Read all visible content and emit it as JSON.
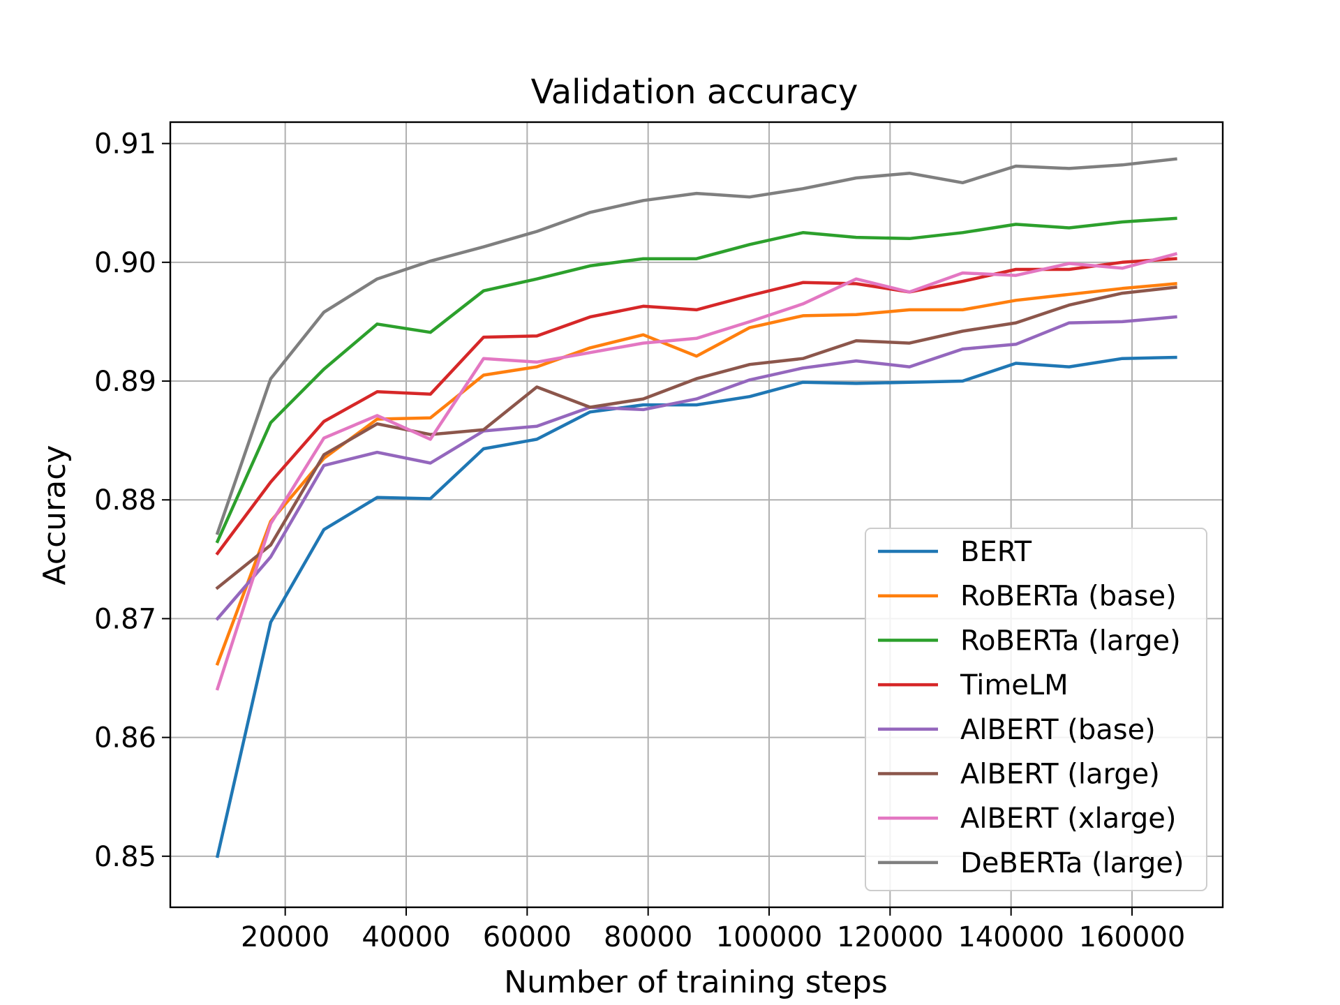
{
  "chart_data": {
    "type": "line",
    "title": "Validation accuracy",
    "xlabel": "Number of training steps",
    "ylabel": "Accuracy",
    "xlim": [
      1000,
      175000
    ],
    "ylim": [
      0.8457,
      0.9118
    ],
    "xticks": [
      20000,
      40000,
      60000,
      80000,
      100000,
      120000,
      140000,
      160000
    ],
    "xtick_labels": [
      "20000",
      "40000",
      "60000",
      "80000",
      "100000",
      "120000",
      "140000",
      "160000"
    ],
    "yticks": [
      0.85,
      0.86,
      0.87,
      0.88,
      0.89,
      0.9,
      0.91
    ],
    "ytick_labels": [
      "0.85",
      "0.86",
      "0.87",
      "0.88",
      "0.89",
      "0.90",
      "0.91"
    ],
    "grid": true,
    "legend_position": "lower-right",
    "x": [
      8800,
      17600,
      26400,
      35200,
      44000,
      52800,
      61600,
      70400,
      79200,
      88000,
      96800,
      105600,
      114400,
      123200,
      132000,
      140800,
      149600,
      158400,
      167200
    ],
    "series": [
      {
        "name": "BERT",
        "color": "#1f77b4",
        "values": [
          0.85,
          0.8697,
          0.8775,
          0.8802,
          0.8801,
          0.8843,
          0.8851,
          0.8874,
          0.888,
          0.888,
          0.8887,
          0.8899,
          0.8898,
          0.8899,
          0.89,
          0.8915,
          0.8912,
          0.8919,
          0.892
        ]
      },
      {
        "name": "RoBERTa (base)",
        "color": "#ff7f0e",
        "values": [
          0.8662,
          0.8782,
          0.8835,
          0.8868,
          0.8869,
          0.8905,
          0.8912,
          0.8928,
          0.8939,
          0.8921,
          0.8945,
          0.8955,
          0.8956,
          0.896,
          0.896,
          0.8968,
          0.8973,
          0.8978,
          0.8982
        ]
      },
      {
        "name": "RoBERTa (large)",
        "color": "#2ca02c",
        "values": [
          0.8765,
          0.8865,
          0.891,
          0.8948,
          0.8941,
          0.8976,
          0.8986,
          0.8997,
          0.9003,
          0.9003,
          0.9015,
          0.9025,
          0.9021,
          0.902,
          0.9025,
          0.9032,
          0.9029,
          0.9034,
          0.9037
        ]
      },
      {
        "name": "TimeLM",
        "color": "#d62728",
        "values": [
          0.8755,
          0.8815,
          0.8866,
          0.8891,
          0.8889,
          0.8937,
          0.8938,
          0.8954,
          0.8963,
          0.896,
          0.8972,
          0.8983,
          0.8982,
          0.8975,
          0.8984,
          0.8994,
          0.8994,
          0.9,
          0.9003
        ]
      },
      {
        "name": "AlBERT (base)",
        "color": "#9467bd",
        "values": [
          0.87,
          0.8752,
          0.8829,
          0.884,
          0.8831,
          0.8858,
          0.8862,
          0.8878,
          0.8876,
          0.8885,
          0.8901,
          0.8911,
          0.8917,
          0.8912,
          0.8927,
          0.8931,
          0.8949,
          0.895,
          0.8954
        ]
      },
      {
        "name": "AlBERT (large)",
        "color": "#8c564b",
        "values": [
          0.8726,
          0.8762,
          0.8838,
          0.8864,
          0.8855,
          0.8859,
          0.8895,
          0.8878,
          0.8885,
          0.8902,
          0.8914,
          0.8919,
          0.8934,
          0.8932,
          0.8942,
          0.8949,
          0.8964,
          0.8974,
          0.8979
        ]
      },
      {
        "name": "AlBERT (xlarge)",
        "color": "#e377c2",
        "values": [
          0.8641,
          0.878,
          0.8852,
          0.8871,
          0.8851,
          0.8919,
          0.8916,
          0.8924,
          0.8932,
          0.8936,
          0.895,
          0.8965,
          0.8986,
          0.8975,
          0.8991,
          0.8989,
          0.8999,
          0.8995,
          0.9007
        ]
      },
      {
        "name": "DeBERTa (large)",
        "color": "#7f7f7f",
        "values": [
          0.8772,
          0.8902,
          0.8958,
          0.8986,
          0.9001,
          0.9013,
          0.9026,
          0.9042,
          0.9052,
          0.9058,
          0.9055,
          0.9062,
          0.9071,
          0.9075,
          0.9067,
          0.9081,
          0.9079,
          0.9082,
          0.9087
        ]
      }
    ]
  }
}
